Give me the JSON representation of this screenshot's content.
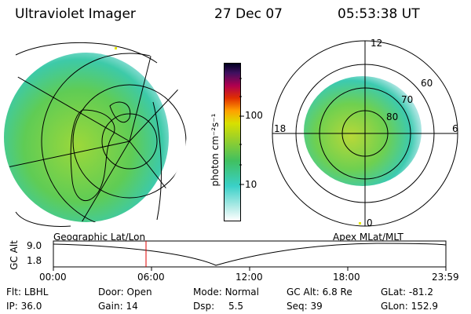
{
  "header": {
    "title": "Ultraviolet Imager",
    "date": "27 Dec 07",
    "time": "05:53:38 UT"
  },
  "colorbar": {
    "label": "photon cm⁻²s⁻¹",
    "ticks": [
      "100",
      "10"
    ]
  },
  "polar": {
    "mlt_labels": [
      "12",
      "18",
      "6",
      "0"
    ],
    "mlat_labels": [
      "60",
      "70",
      "80"
    ]
  },
  "timeline": {
    "left_caption": "Geographic Lat/Lon",
    "right_caption": "Apex  MLat/MLT",
    "axis_label": "GC Alt",
    "y_ticks": [
      "9.0",
      "1.8"
    ],
    "x_ticks": [
      "00:00",
      "06:00",
      "12:00",
      "18:00",
      "23:59"
    ]
  },
  "status": {
    "row1": [
      {
        "label": "Flt:",
        "value": "LBHL"
      },
      {
        "label": "Door:",
        "value": "Open"
      },
      {
        "label": "Mode:",
        "value": "Normal"
      },
      {
        "label": "GC Alt:",
        "value": "6.8 Re"
      },
      {
        "label": "GLat:",
        "value": "-81.2"
      }
    ],
    "row2": [
      {
        "label": "IP:",
        "value": "36.0"
      },
      {
        "label": "Gain:",
        "value": "14"
      },
      {
        "label": "Dsp:",
        "value": "5.5"
      },
      {
        "label": "Seq:",
        "value": "39"
      },
      {
        "label": "GLon:",
        "value": "152.9"
      }
    ]
  }
}
